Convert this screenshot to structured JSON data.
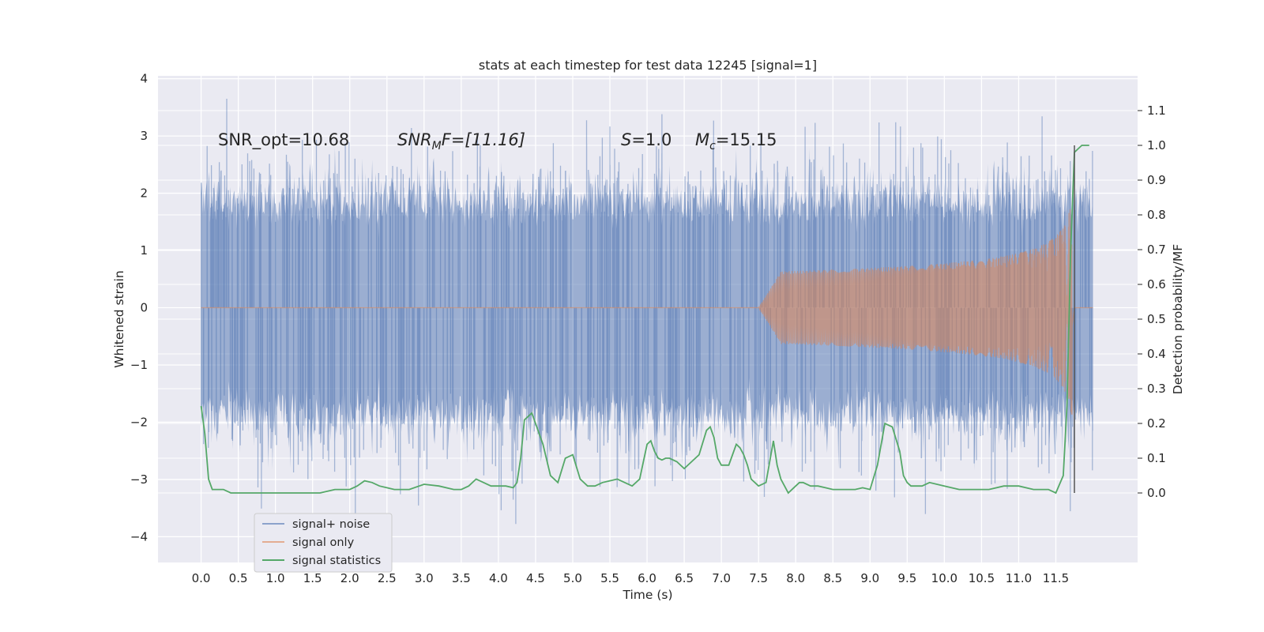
{
  "chart_data": {
    "type": "line",
    "title": "stats at each timestep for test data 12245 [signal=1]",
    "xlabel": "Time (s)",
    "ylabel_left": "Whitened strain",
    "ylabel_right": "Detection probability/MF",
    "xlim": [
      -0.58,
      12.6
    ],
    "ylim_left": [
      -4.45,
      4.05
    ],
    "ylim_right": [
      -0.2,
      1.2
    ],
    "xticks": [
      "0.0",
      "0.5",
      "1.0",
      "1.5",
      "2.0",
      "2.5",
      "3.0",
      "3.5",
      "4.0",
      "4.5",
      "5.0",
      "5.5",
      "6.0",
      "6.5",
      "7.0",
      "7.5",
      "8.0",
      "8.5",
      "9.0",
      "9.5",
      "10.0",
      "10.5",
      "11.0",
      "11.5"
    ],
    "yticks_left": [
      "4",
      "3",
      "2",
      "1",
      "0",
      "−1",
      "−2",
      "−3",
      "−4"
    ],
    "yticks_right": [
      "0.0",
      "0.1",
      "0.2",
      "0.3",
      "0.4",
      "0.5",
      "0.6",
      "0.7",
      "0.8",
      "0.9",
      "1.0",
      "1.1"
    ],
    "grid": true,
    "legend_position": "lower-left",
    "background_color": "#eaeaf2",
    "annotations": {
      "snr_opt": "SNR_opt=10.68",
      "snr_mf_main": "SNR",
      "snr_mf_sub": "M",
      "snr_mf_rest": "F=[11.16]",
      "s_main": "S",
      "s_rest": "=1.0",
      "mc_main": "M",
      "mc_sub": "c",
      "mc_rest": "=15.15"
    },
    "marker_line_time": 11.75,
    "series": [
      {
        "name": "signal+ noise",
        "color": "#4c72b0",
        "axis": "left",
        "description_range": [
          0.0,
          12.0
        ],
        "typical_amplitude": 1.6,
        "max_value": 3.65,
        "min_value": -4.1
      },
      {
        "name": "signal only",
        "color": "#dd8452",
        "axis": "left",
        "chirp_start": 7.5,
        "chirp_peak_time": 11.72,
        "chirp_peak_amplitude": 2.0
      },
      {
        "name": "signal statistics",
        "color": "#55a868",
        "axis": "right",
        "x": [
          0.0,
          0.05,
          0.1,
          0.15,
          0.2,
          0.3,
          0.4,
          0.5,
          0.6,
          0.7,
          0.8,
          0.9,
          1.0,
          1.2,
          1.4,
          1.6,
          1.8,
          1.9,
          2.0,
          2.1,
          2.2,
          2.3,
          2.4,
          2.5,
          2.6,
          2.8,
          3.0,
          3.2,
          3.4,
          3.5,
          3.6,
          3.7,
          3.8,
          3.9,
          4.0,
          4.1,
          4.2,
          4.25,
          4.3,
          4.35,
          4.4,
          4.45,
          4.5,
          4.6,
          4.7,
          4.8,
          4.9,
          5.0,
          5.1,
          5.2,
          5.3,
          5.4,
          5.5,
          5.6,
          5.7,
          5.8,
          5.9,
          6.0,
          6.05,
          6.1,
          6.15,
          6.2,
          6.25,
          6.3,
          6.4,
          6.5,
          6.6,
          6.7,
          6.8,
          6.85,
          6.9,
          6.95,
          7.0,
          7.1,
          7.2,
          7.25,
          7.3,
          7.35,
          7.4,
          7.5,
          7.6,
          7.7,
          7.75,
          7.8,
          7.85,
          7.9,
          8.0,
          8.05,
          8.1,
          8.2,
          8.3,
          8.4,
          8.5,
          8.6,
          8.7,
          8.8,
          8.9,
          9.0,
          9.1,
          9.2,
          9.3,
          9.4,
          9.45,
          9.5,
          9.55,
          9.6,
          9.7,
          9.8,
          10.0,
          10.2,
          10.4,
          10.6,
          10.8,
          11.0,
          11.2,
          11.4,
          11.5,
          11.6,
          11.65,
          11.7,
          11.75,
          11.8,
          11.85,
          11.95
        ],
        "y": [
          0.25,
          0.17,
          0.04,
          0.01,
          0.01,
          0.01,
          0.0,
          0.0,
          0.0,
          0.0,
          0.0,
          0.0,
          0.0,
          0.0,
          0.0,
          0.0,
          0.01,
          0.01,
          0.01,
          0.02,
          0.035,
          0.03,
          0.02,
          0.015,
          0.01,
          0.01,
          0.025,
          0.02,
          0.01,
          0.01,
          0.02,
          0.04,
          0.03,
          0.02,
          0.02,
          0.02,
          0.015,
          0.03,
          0.1,
          0.21,
          0.22,
          0.23,
          0.2,
          0.14,
          0.05,
          0.03,
          0.1,
          0.11,
          0.04,
          0.02,
          0.02,
          0.03,
          0.035,
          0.04,
          0.03,
          0.02,
          0.04,
          0.14,
          0.15,
          0.12,
          0.1,
          0.095,
          0.1,
          0.1,
          0.09,
          0.07,
          0.09,
          0.11,
          0.18,
          0.19,
          0.16,
          0.1,
          0.08,
          0.08,
          0.14,
          0.13,
          0.11,
          0.08,
          0.04,
          0.02,
          0.03,
          0.15,
          0.08,
          0.04,
          0.02,
          0.0,
          0.02,
          0.03,
          0.03,
          0.02,
          0.02,
          0.015,
          0.01,
          0.01,
          0.01,
          0.01,
          0.015,
          0.01,
          0.08,
          0.2,
          0.19,
          0.12,
          0.05,
          0.03,
          0.02,
          0.02,
          0.02,
          0.03,
          0.02,
          0.01,
          0.01,
          0.01,
          0.02,
          0.02,
          0.01,
          0.01,
          0.0,
          0.05,
          0.25,
          0.7,
          0.98,
          0.99,
          1.0,
          1.0
        ]
      }
    ]
  },
  "legend": {
    "items": [
      {
        "label": "signal+ noise",
        "color": "#4c72b0"
      },
      {
        "label": "signal only",
        "color": "#dd8452"
      },
      {
        "label": "signal statistics",
        "color": "#55a868"
      }
    ]
  }
}
